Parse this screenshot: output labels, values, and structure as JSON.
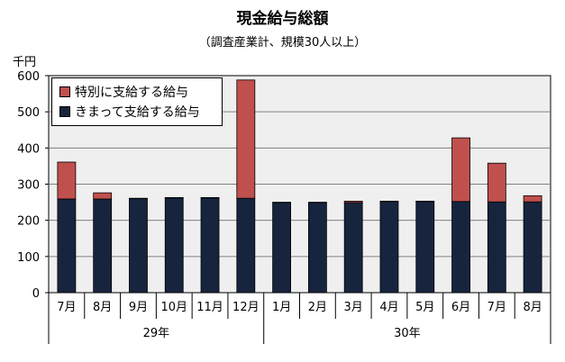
{
  "title": "現金給与総額",
  "subtitle": "（調査産業計、規模30人以上）",
  "colors": {
    "special": "#c0504d",
    "regular": "#17243e",
    "plot_bg": "#efefef",
    "grid": "#808080"
  },
  "chart_data": {
    "type": "bar",
    "stacked": true,
    "ylabel": "千円",
    "ylim": [
      0,
      600
    ],
    "yticks": [
      0,
      100,
      200,
      300,
      400,
      500,
      600
    ],
    "categories": [
      "7月",
      "8月",
      "9月",
      "10月",
      "11月",
      "12月",
      "1月",
      "2月",
      "3月",
      "4月",
      "5月",
      "6月",
      "7月",
      "8月"
    ],
    "groups": [
      {
        "label": "29年",
        "start": 0,
        "end": 5
      },
      {
        "label": "30年",
        "start": 6,
        "end": 13
      }
    ],
    "series": [
      {
        "name": "きまって支給する給与",
        "color": "#17243e",
        "values": [
          259,
          259,
          260,
          262,
          262,
          261,
          249,
          249,
          249,
          252,
          252,
          252,
          251,
          251
        ]
      },
      {
        "name": "特別に支給する給与",
        "color": "#c0504d",
        "values": [
          102,
          17,
          1,
          1,
          1,
          327,
          1,
          1,
          4,
          1,
          1,
          176,
          107,
          17
        ]
      }
    ],
    "legend_position": "top-left",
    "grid": true
  }
}
